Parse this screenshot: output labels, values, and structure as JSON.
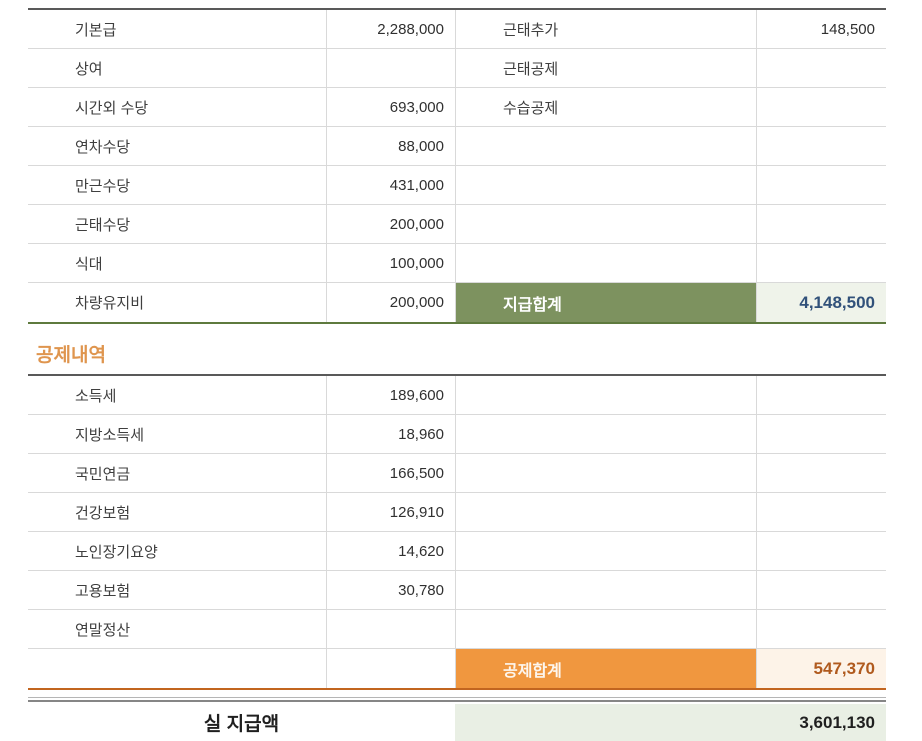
{
  "colors": {
    "section-border": "#595959",
    "grid-line": "#d9d9d9",
    "pay-accent": "#7d925f",
    "pay-accent-dark": "#5e7a3e",
    "pay-total-bg": "#eff3ea",
    "pay-total-text": "#31517a",
    "deduct-accent": "#f0973f",
    "deduct-accent-dark": "#c2651f",
    "deduct-total-bg": "#fdf3e8",
    "deduct-total-text": "#b05a1e",
    "heading-orange": "#df954e",
    "net-bg": "#e9efe4",
    "text": "#3f3f3f"
  },
  "pay_table": {
    "left_rows": [
      {
        "label": "기본급",
        "value": "2,288,000"
      },
      {
        "label": "상여",
        "value": ""
      },
      {
        "label": "시간외 수당",
        "value": "693,000"
      },
      {
        "label": "연차수당",
        "value": "88,000"
      },
      {
        "label": "만근수당",
        "value": "431,000"
      },
      {
        "label": "근태수당",
        "value": "200,000"
      },
      {
        "label": "식대",
        "value": "100,000"
      },
      {
        "label": "차량유지비",
        "value": "200,000"
      }
    ],
    "right_rows": [
      {
        "label": "근태추가",
        "value": "148,500"
      },
      {
        "label": "근태공제",
        "value": ""
      },
      {
        "label": "수습공제",
        "value": ""
      },
      {
        "label": "",
        "value": ""
      },
      {
        "label": "",
        "value": ""
      },
      {
        "label": "",
        "value": ""
      },
      {
        "label": "",
        "value": ""
      }
    ],
    "total": {
      "label": "지급합계",
      "value": "4,148,500"
    }
  },
  "deduction_section": {
    "heading": "공제내역",
    "left_rows": [
      {
        "label": "소득세",
        "value": "189,600"
      },
      {
        "label": "지방소득세",
        "value": "18,960"
      },
      {
        "label": "국민연금",
        "value": "166,500"
      },
      {
        "label": "건강보험",
        "value": "126,910"
      },
      {
        "label": "노인장기요양",
        "value": "14,620"
      },
      {
        "label": "고용보험",
        "value": "30,780"
      },
      {
        "label": "연말정산",
        "value": ""
      },
      {
        "label": "",
        "value": ""
      }
    ],
    "total": {
      "label": "공제합계",
      "value": "547,370"
    }
  },
  "net_pay": {
    "label": "실 지급액",
    "value": "3,601,130"
  }
}
